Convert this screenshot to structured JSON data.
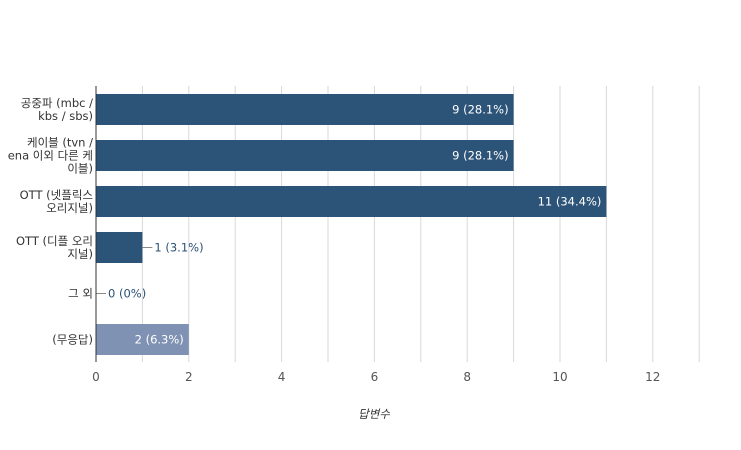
{
  "chart_data": {
    "type": "bar",
    "orientation": "horizontal",
    "categories": [
      "공중파 (mbc / kbs / sbs)",
      "케이블 (tvn / ena 이외 다른 케이블)",
      "OTT (넷플릭스 오리지널)",
      "OTT (디플 오리지널)",
      "그 외",
      "(무응답)"
    ],
    "category_label_lines": [
      [
        "공중파 (mbc /",
        "kbs / sbs)"
      ],
      [
        "케이블 (tvn /",
        "ena 이외 다른 케",
        "이블)"
      ],
      [
        "OTT (넷플릭스",
        "오리지널)"
      ],
      [
        "OTT (디플 오리",
        "지널)"
      ],
      [
        "그 외"
      ],
      [
        "(무응답)"
      ]
    ],
    "values": [
      9,
      9,
      11,
      1,
      0,
      2
    ],
    "value_labels": [
      "9 (28.1%)",
      "9 (28.1%)",
      "11 (34.4%)",
      "1 (3.1%)",
      "0 (0%)",
      "2 (6.3%)"
    ],
    "xlabel": "답변수",
    "ylabel": "",
    "xlim": [
      0,
      13
    ],
    "x_ticks": [
      0,
      2,
      4,
      6,
      8,
      10,
      12
    ],
    "grid": true,
    "colors": {
      "bar": "#2c5378",
      "no_response_bar": "#7f92b3",
      "label_outside": "#2c5075",
      "grid": "#d9d9d9"
    }
  }
}
